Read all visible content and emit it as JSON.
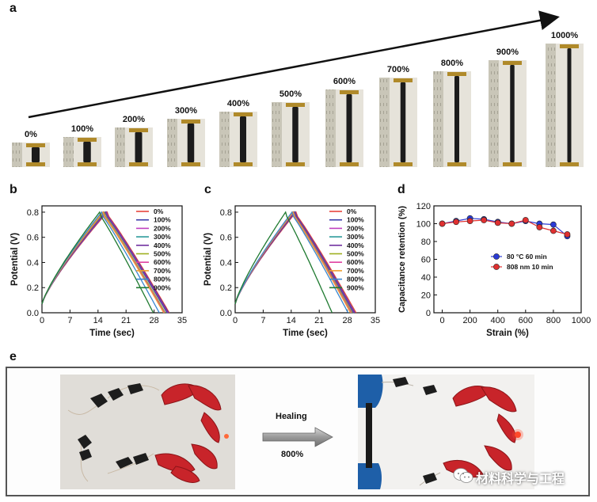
{
  "panels": {
    "a": "a",
    "b": "b",
    "c": "c",
    "d": "d",
    "e": "e"
  },
  "panel_a": {
    "strains": [
      "0%",
      "100%",
      "200%",
      "300%",
      "400%",
      "500%",
      "600%",
      "700%",
      "800%",
      "900%",
      "1000%"
    ]
  },
  "panel_e": {
    "arrow_label_top": "Healing",
    "arrow_label_bottom": "800%"
  },
  "watermark": "材料科学与工程",
  "chart_data": [
    {
      "panel": "b",
      "type": "line",
      "xlabel": "Time (sec)",
      "ylabel": "Potential (V)",
      "xlim": [
        0,
        35
      ],
      "ylim": [
        0,
        0.85
      ],
      "xticks": [
        0,
        7,
        14,
        21,
        28,
        35
      ],
      "yticks": [
        0.0,
        0.2,
        0.4,
        0.6,
        0.8
      ],
      "legend_position": "top-right",
      "series": [
        {
          "name": "0%",
          "color": "#e8453c",
          "peak": 16.3,
          "end": 31.8
        },
        {
          "name": "100%",
          "color": "#3a3aa8",
          "peak": 16.1,
          "end": 31.6
        },
        {
          "name": "200%",
          "color": "#c040c0",
          "peak": 16.0,
          "end": 31.4
        },
        {
          "name": "300%",
          "color": "#2a9a9a",
          "peak": 15.8,
          "end": 31.2
        },
        {
          "name": "400%",
          "color": "#7030a0",
          "peak": 15.9,
          "end": 31.3
        },
        {
          "name": "500%",
          "color": "#9fb020",
          "peak": 15.5,
          "end": 30.8
        },
        {
          "name": "600%",
          "color": "#e040a0",
          "peak": 15.3,
          "end": 30.6
        },
        {
          "name": "700%",
          "color": "#f0a030",
          "peak": 15.2,
          "end": 30.4
        },
        {
          "name": "800%",
          "color": "#3a86d0",
          "peak": 14.9,
          "end": 29.3
        },
        {
          "name": "900%",
          "color": "#1f7a30",
          "peak": 14.4,
          "end": 27.8
        }
      ]
    },
    {
      "panel": "c",
      "type": "line",
      "xlabel": "Time (sec)",
      "ylabel": "Potential (V)",
      "xlim": [
        0,
        35
      ],
      "ylim": [
        0,
        0.85
      ],
      "xticks": [
        0,
        7,
        14,
        21,
        28,
        35
      ],
      "yticks": [
        0.0,
        0.2,
        0.4,
        0.6,
        0.8
      ],
      "legend_position": "top-right",
      "series": [
        {
          "name": "0%",
          "color": "#e8453c",
          "peak": 15.2,
          "end": 30.2
        },
        {
          "name": "100%",
          "color": "#3a3aa8",
          "peak": 15.0,
          "end": 29.9
        },
        {
          "name": "200%",
          "color": "#c040c0",
          "peak": 14.9,
          "end": 29.7
        },
        {
          "name": "300%",
          "color": "#2a9a9a",
          "peak": 14.8,
          "end": 29.5
        },
        {
          "name": "400%",
          "color": "#7030a0",
          "peak": 14.9,
          "end": 29.6
        },
        {
          "name": "500%",
          "color": "#9fb020",
          "peak": 14.6,
          "end": 29.2
        },
        {
          "name": "600%",
          "color": "#e040a0",
          "peak": 14.5,
          "end": 29.0
        },
        {
          "name": "700%",
          "color": "#f0a030",
          "peak": 14.4,
          "end": 28.8
        },
        {
          "name": "800%",
          "color": "#3a86d0",
          "peak": 14.2,
          "end": 28.2
        },
        {
          "name": "900%",
          "color": "#1f7a30",
          "peak": 12.6,
          "end": 24.2
        }
      ]
    },
    {
      "panel": "d",
      "type": "line",
      "xlabel": "Strain (%)",
      "ylabel": "Capacitance retention (%)",
      "xlim": [
        -60,
        1000
      ],
      "ylim": [
        0,
        120
      ],
      "xticks": [
        0,
        200,
        400,
        600,
        800,
        1000
      ],
      "yticks": [
        0,
        20,
        40,
        60,
        80,
        100,
        120
      ],
      "legend_position": "center-right",
      "x": [
        0,
        100,
        200,
        300,
        400,
        500,
        600,
        700,
        800,
        900
      ],
      "series": [
        {
          "name": "80 °C  60 min",
          "color": "#2b3bd6",
          "values": [
            100,
            103,
            106,
            105,
            102,
            100,
            103,
            100,
            99,
            86
          ]
        },
        {
          "name": "808 nm  10 min",
          "color": "#e03030",
          "values": [
            100,
            102,
            103,
            104,
            101,
            100,
            104,
            96,
            92,
            88
          ]
        }
      ]
    }
  ]
}
